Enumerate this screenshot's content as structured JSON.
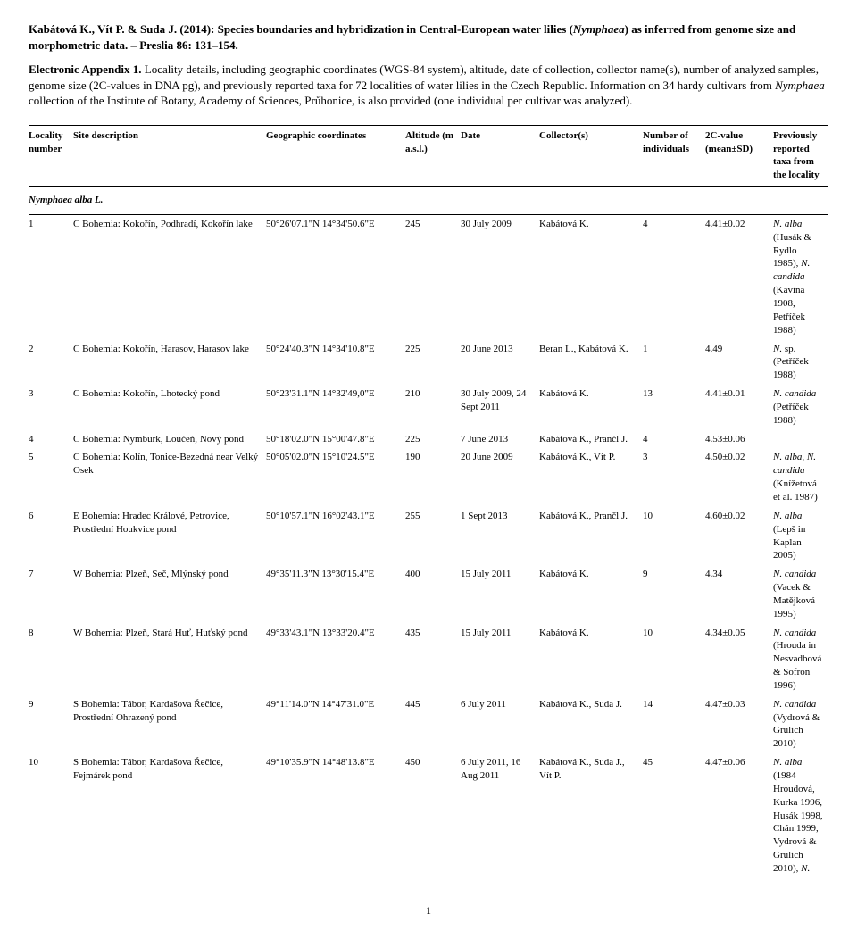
{
  "citation": {
    "authors": "Kabátová K., Vít P. & Suda J. (2014): ",
    "title_pre": "Species boundaries and hybridization in Central-European water lilies (",
    "title_ital": "Nymphaea",
    "title_post": ") as inferred from genome size and morphometric data. – Preslia 86: 131–154."
  },
  "abstract": {
    "lead": "Electronic Appendix 1.",
    "body_pre": " Locality details, including geographic coordinates (WGS-84 system), altitude, date of collection, collector name(s), number of analyzed samples, genome size (2C-values in DNA pg), and previously reported taxa for 72 localities of water lilies in the Czech Republic. Information on 34 hardy cultivars from ",
    "body_ital": "Nymphaea",
    "body_post": " collection of the Institute of Botany, Academy of Sciences, Průhonice, is also provided (one individual per cultivar was analyzed)."
  },
  "headers": {
    "loc": "Locality number",
    "site": "Site description",
    "geo": "Geographic coordinates",
    "alt": "Altitude (m a.s.l.)",
    "date": "Date",
    "coll": "Collector(s)",
    "num": "Number of individuals",
    "c2": "2C-value (mean±SD)",
    "prev": "Previously reported taxa from the locality"
  },
  "section_label": "Nymphaea alba L.",
  "rows": [
    {
      "n": "1",
      "site": "C Bohemia: Kokořín, Podhradí, Kokořín lake",
      "geo": "50°26'07.1\"N 14°34'50.6\"E",
      "alt": "245",
      "date": "30 July 2009",
      "coll": "Kabátová K.",
      "num": "4",
      "c2": "4.41±0.02",
      "prev_html": "<span class='ital'>N. alba</span> (Husák & Rydlo 1985), <span class='ital'>N. candida</span> (Kavina 1908, Petříček 1988)"
    },
    {
      "n": "2",
      "site": "C Bohemia: Kokořín, Harasov, Harasov lake",
      "geo": "50°24'40.3\"N 14°34'10.8\"E",
      "alt": "225",
      "date": "20 June 2013",
      "coll": "Beran L., Kabátová K.",
      "num": "1",
      "c2": "4.49",
      "prev_html": "<span class='ital'>N.</span> sp. (Petříček 1988)"
    },
    {
      "n": "3",
      "site": "C Bohemia: Kokořín, Lhotecký pond",
      "geo": "50°23'31.1\"N 14°32'49,0\"E",
      "alt": "210",
      "date": "30 July 2009, 24 Sept 2011",
      "coll": "Kabátová K.",
      "num": "13",
      "c2": "4.41±0.01",
      "prev_html": "<span class='ital'>N. candida</span> (Petříček 1988)"
    },
    {
      "n": "4",
      "site": "C Bohemia: Nymburk, Loučeň, Nový pond",
      "geo": "50°18'02.0\"N 15°00'47.8\"E",
      "alt": "225",
      "date": "7 June 2013",
      "coll": "Kabátová K., Prančl J.",
      "num": "4",
      "c2": "4.53±0.06",
      "prev_html": ""
    },
    {
      "n": "5",
      "site": "C Bohemia: Kolín, Tonice-Bezedná near Velký Osek",
      "geo": "50°05'02.0\"N 15°10'24.5\"E",
      "alt": "190",
      "date": "20 June 2009",
      "coll": "Kabátová K., Vít P.",
      "num": "3",
      "c2": "4.50±0.02",
      "prev_html": "<span class='ital'>N. alba</span>, <span class='ital'>N. candida</span> (Knížetová et al. 1987)"
    },
    {
      "n": "6",
      "site": "E Bohemia: Hradec Králové, Petrovice, Prostřední Houkvice pond",
      "geo": "50°10'57.1\"N 16°02'43.1\"E",
      "alt": "255",
      "date": "1 Sept 2013",
      "coll": "Kabátová K., Prančl J.",
      "num": "10",
      "c2": "4.60±0.02",
      "prev_html": "<span class='ital'>N. alba</span> (Lepš in Kaplan 2005)"
    },
    {
      "n": "7",
      "site": "W Bohemia: Plzeň, Seč, Mlýnský pond",
      "geo": "49°35'11.3\"N 13°30'15.4\"E",
      "alt": "400",
      "date": "15 July 2011",
      "coll": "Kabátová K.",
      "num": "9",
      "c2": "4.34",
      "prev_html": "<span class='ital'>N. candida</span> (Vacek & Matějková 1995)"
    },
    {
      "n": "8",
      "site": "W Bohemia: Plzeň, Stará Huť, Huťský pond",
      "geo": "49°33'43.1\"N 13°33'20.4\"E",
      "alt": "435",
      "date": "15 July 2011",
      "coll": "Kabátová K.",
      "num": "10",
      "c2": "4.34±0.05",
      "prev_html": "<span class='ital'>N. candida</span> (Hrouda in Nesvadbová & Sofron 1996)"
    },
    {
      "n": "9",
      "site": "S Bohemia: Tábor, Kardašova Řečice, Prostřední Ohrazený pond",
      "geo": "49°11'14.0\"N 14°47'31.0\"E",
      "alt": "445",
      "date": "6 July 2011",
      "coll": "Kabátová K., Suda J.",
      "num": "14",
      "c2": "4.47±0.03",
      "prev_html": "<span class='ital'>N. candida</span> (Vydrová & Grulich 2010)"
    },
    {
      "n": "10",
      "site": "S Bohemia: Tábor, Kardašova Řečice, Fejmárek pond",
      "geo": "49°10'35.9\"N 14°48'13.8\"E",
      "alt": "450",
      "date": "6 July 2011, 16 Aug 2011",
      "coll": "Kabátová K., Suda J., Vít P.",
      "num": "45",
      "c2": "4.47±0.06",
      "prev_html": "<span class='ital'>N. alba</span> (1984 Hroudová, Kurka 1996, Husák 1998, Chán 1999, Vydrová & Grulich 2010), <span class='ital'>N.</span>"
    }
  ],
  "page_number": "1"
}
